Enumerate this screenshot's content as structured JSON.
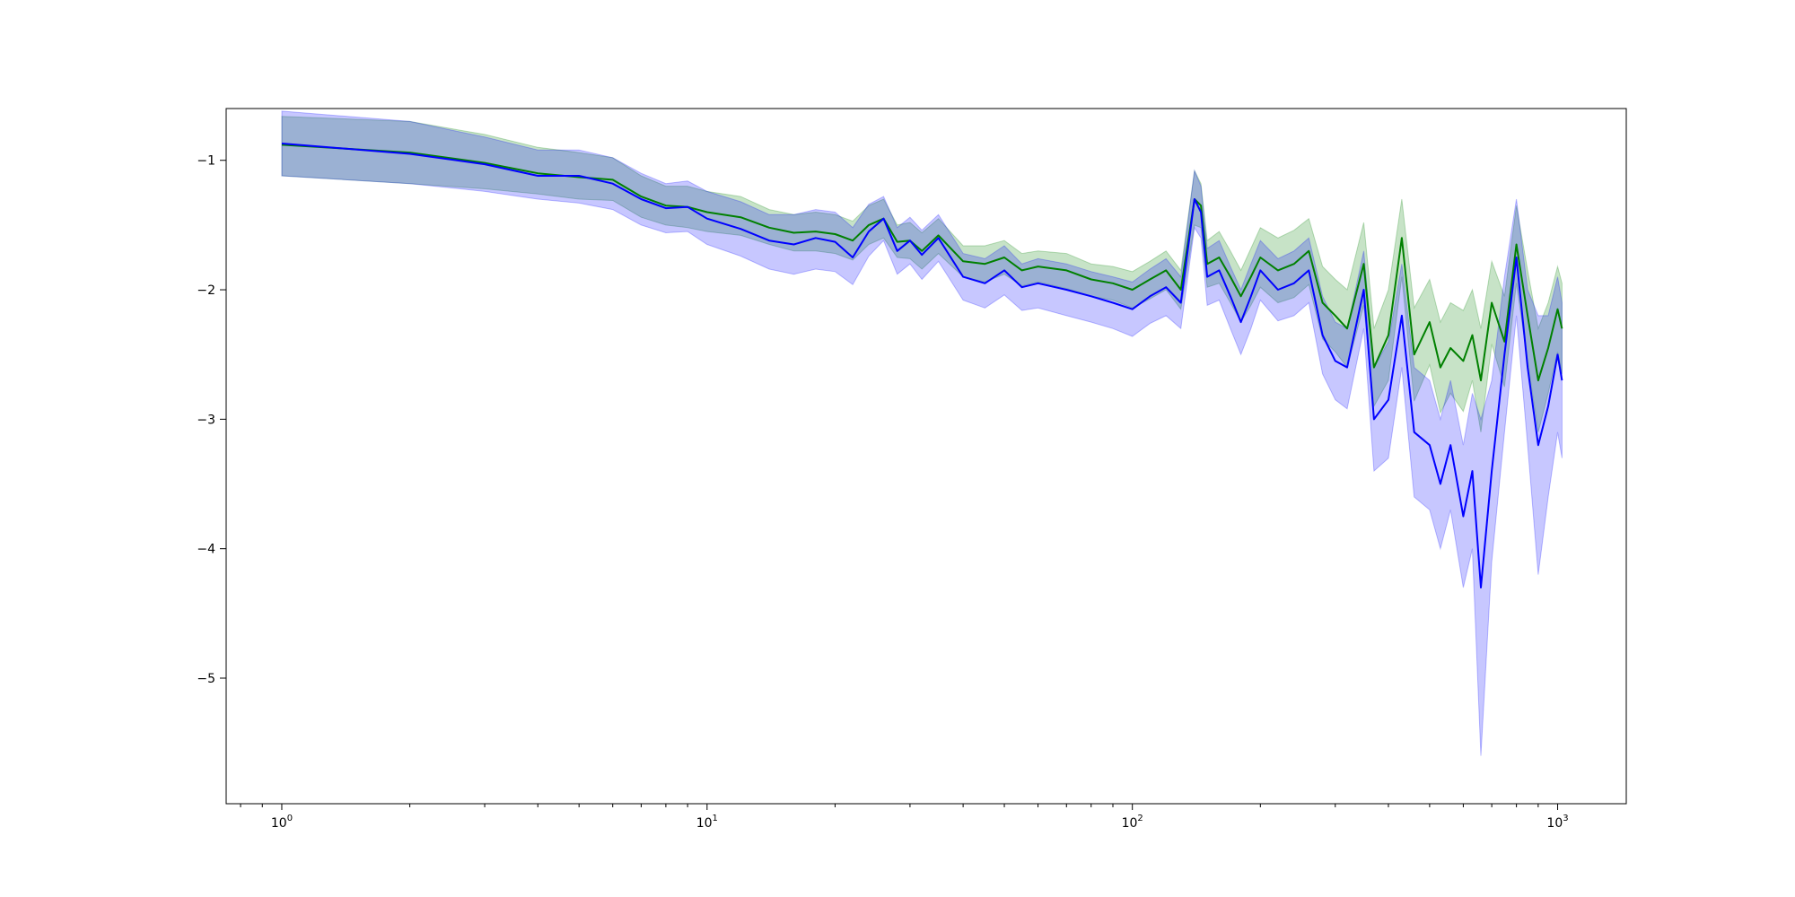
{
  "chart_data": {
    "type": "line",
    "title": "",
    "xlabel": "",
    "ylabel": "",
    "xscale": "log",
    "xlim": [
      0.74,
      1450
    ],
    "ylim": [
      -5.97,
      -0.6
    ],
    "grid": false,
    "legend": "none",
    "xticks": [
      {
        "value": 1,
        "base": "10",
        "exp": "0"
      },
      {
        "value": 10,
        "base": "10",
        "exp": "1"
      },
      {
        "value": 100,
        "base": "10",
        "exp": "2"
      },
      {
        "value": 1000,
        "base": "10",
        "exp": "3"
      }
    ],
    "yticks": [
      {
        "value": -1,
        "label": "−1"
      },
      {
        "value": -2,
        "label": "−2"
      },
      {
        "value": -3,
        "label": "−3"
      },
      {
        "value": -4,
        "label": "−4"
      },
      {
        "value": -5,
        "label": "−5"
      }
    ],
    "x": [
      1,
      2,
      3,
      4,
      5,
      6,
      7,
      8,
      9,
      10,
      12,
      14,
      16,
      18,
      20,
      22,
      24,
      26,
      28,
      30,
      32,
      35,
      40,
      45,
      50,
      55,
      60,
      70,
      80,
      90,
      100,
      110,
      120,
      130,
      140,
      145,
      150,
      160,
      170,
      180,
      190,
      200,
      220,
      240,
      260,
      280,
      300,
      320,
      350,
      370,
      400,
      430,
      460,
      500,
      530,
      560,
      600,
      630,
      660,
      700,
      750,
      800,
      850,
      900,
      950,
      1000,
      1024
    ],
    "series": [
      {
        "color": "#008000",
        "fill": "#008000",
        "fill_opacity": 0.22,
        "mean": [
          -0.88,
          -0.94,
          -1.02,
          -1.1,
          -1.13,
          -1.15,
          -1.28,
          -1.35,
          -1.36,
          -1.4,
          -1.44,
          -1.52,
          -1.56,
          -1.55,
          -1.57,
          -1.62,
          -1.5,
          -1.45,
          -1.63,
          -1.62,
          -1.7,
          -1.58,
          -1.78,
          -1.8,
          -1.75,
          -1.85,
          -1.82,
          -1.85,
          -1.92,
          -1.95,
          -2.0,
          -1.92,
          -1.85,
          -2.0,
          -1.3,
          -1.35,
          -1.8,
          -1.75,
          -1.9,
          -2.05,
          -1.9,
          -1.75,
          -1.85,
          -1.8,
          -1.7,
          -2.1,
          -2.2,
          -2.3,
          -1.8,
          -2.6,
          -2.35,
          -1.6,
          -2.5,
          -2.25,
          -2.6,
          -2.45,
          -2.55,
          -2.35,
          -2.7,
          -2.1,
          -2.4,
          -1.65,
          -2.2,
          -2.7,
          -2.45,
          -2.15,
          -2.3
        ],
        "lower": [
          -1.12,
          -1.18,
          -1.22,
          -1.26,
          -1.3,
          -1.31,
          -1.44,
          -1.5,
          -1.52,
          -1.55,
          -1.58,
          -1.65,
          -1.7,
          -1.7,
          -1.72,
          -1.77,
          -1.65,
          -1.6,
          -1.75,
          -1.76,
          -1.84,
          -1.72,
          -1.9,
          -1.94,
          -1.88,
          -1.97,
          -1.94,
          -1.99,
          -2.05,
          -2.08,
          -2.14,
          -2.07,
          -2.0,
          -2.15,
          -1.5,
          -1.52,
          -1.98,
          -1.95,
          -2.1,
          -2.25,
          -2.12,
          -1.98,
          -2.1,
          -2.06,
          -1.96,
          -2.38,
          -2.48,
          -2.6,
          -2.12,
          -2.9,
          -2.7,
          -1.9,
          -2.86,
          -2.58,
          -2.95,
          -2.8,
          -2.94,
          -2.7,
          -3.1,
          -2.42,
          -2.75,
          -1.95,
          -2.55,
          -3.1,
          -2.8,
          -2.48,
          -2.65
        ],
        "upper": [
          -0.66,
          -0.7,
          -0.8,
          -0.9,
          -0.94,
          -0.98,
          -1.12,
          -1.2,
          -1.2,
          -1.24,
          -1.28,
          -1.38,
          -1.42,
          -1.4,
          -1.42,
          -1.47,
          -1.35,
          -1.3,
          -1.5,
          -1.48,
          -1.56,
          -1.45,
          -1.66,
          -1.66,
          -1.62,
          -1.72,
          -1.7,
          -1.72,
          -1.8,
          -1.82,
          -1.86,
          -1.78,
          -1.7,
          -1.85,
          -1.08,
          -1.18,
          -1.62,
          -1.55,
          -1.7,
          -1.85,
          -1.68,
          -1.52,
          -1.6,
          -1.54,
          -1.45,
          -1.82,
          -1.92,
          -2.0,
          -1.48,
          -2.3,
          -2.0,
          -1.3,
          -2.14,
          -1.92,
          -2.25,
          -2.1,
          -2.16,
          -2.0,
          -2.3,
          -1.78,
          -2.05,
          -1.35,
          -1.85,
          -2.3,
          -2.1,
          -1.82,
          -1.95
        ]
      },
      {
        "color": "#0000ff",
        "fill": "#0000ff",
        "fill_opacity": 0.22,
        "mean": [
          -0.87,
          -0.95,
          -1.03,
          -1.12,
          -1.12,
          -1.18,
          -1.3,
          -1.37,
          -1.36,
          -1.45,
          -1.53,
          -1.62,
          -1.65,
          -1.6,
          -1.63,
          -1.75,
          -1.55,
          -1.45,
          -1.7,
          -1.62,
          -1.73,
          -1.6,
          -1.9,
          -1.95,
          -1.85,
          -1.98,
          -1.95,
          -2.0,
          -2.05,
          -2.1,
          -2.15,
          -2.05,
          -1.98,
          -2.1,
          -1.3,
          -1.4,
          -1.9,
          -1.85,
          -2.05,
          -2.25,
          -2.05,
          -1.85,
          -2.0,
          -1.95,
          -1.85,
          -2.35,
          -2.55,
          -2.6,
          -2.0,
          -3.0,
          -2.85,
          -2.2,
          -3.1,
          -3.2,
          -3.5,
          -3.2,
          -3.75,
          -3.4,
          -4.3,
          -3.4,
          -2.5,
          -1.75,
          -2.6,
          -3.2,
          -2.9,
          -2.5,
          -2.7
        ],
        "lower": [
          -1.12,
          -1.18,
          -1.24,
          -1.3,
          -1.33,
          -1.38,
          -1.5,
          -1.56,
          -1.55,
          -1.65,
          -1.74,
          -1.84,
          -1.88,
          -1.84,
          -1.86,
          -1.96,
          -1.74,
          -1.62,
          -1.88,
          -1.8,
          -1.92,
          -1.78,
          -2.08,
          -2.14,
          -2.04,
          -2.16,
          -2.14,
          -2.2,
          -2.25,
          -2.3,
          -2.36,
          -2.26,
          -2.2,
          -2.3,
          -1.52,
          -1.6,
          -2.12,
          -2.08,
          -2.3,
          -2.5,
          -2.3,
          -2.08,
          -2.24,
          -2.2,
          -2.1,
          -2.65,
          -2.85,
          -2.92,
          -2.3,
          -3.4,
          -3.3,
          -2.6,
          -3.6,
          -3.7,
          -4.0,
          -3.7,
          -4.3,
          -4.0,
          -5.6,
          -4.1,
          -3.1,
          -2.2,
          -3.2,
          -4.2,
          -3.6,
          -3.1,
          -3.3
        ],
        "upper": [
          -0.62,
          -0.7,
          -0.82,
          -0.92,
          -0.92,
          -0.98,
          -1.1,
          -1.18,
          -1.16,
          -1.24,
          -1.32,
          -1.42,
          -1.42,
          -1.38,
          -1.4,
          -1.52,
          -1.34,
          -1.28,
          -1.52,
          -1.44,
          -1.54,
          -1.42,
          -1.72,
          -1.76,
          -1.66,
          -1.8,
          -1.76,
          -1.8,
          -1.86,
          -1.9,
          -1.94,
          -1.84,
          -1.76,
          -1.9,
          -1.08,
          -1.2,
          -1.68,
          -1.62,
          -1.82,
          -2.0,
          -1.8,
          -1.62,
          -1.76,
          -1.7,
          -1.6,
          -2.05,
          -2.25,
          -2.3,
          -1.7,
          -2.6,
          -2.4,
          -1.8,
          -2.6,
          -2.7,
          -3.0,
          -2.7,
          -3.2,
          -2.8,
          -3.0,
          -2.7,
          -1.9,
          -1.3,
          -2.0,
          -2.2,
          -2.2,
          -1.9,
          -2.1
        ]
      }
    ]
  }
}
